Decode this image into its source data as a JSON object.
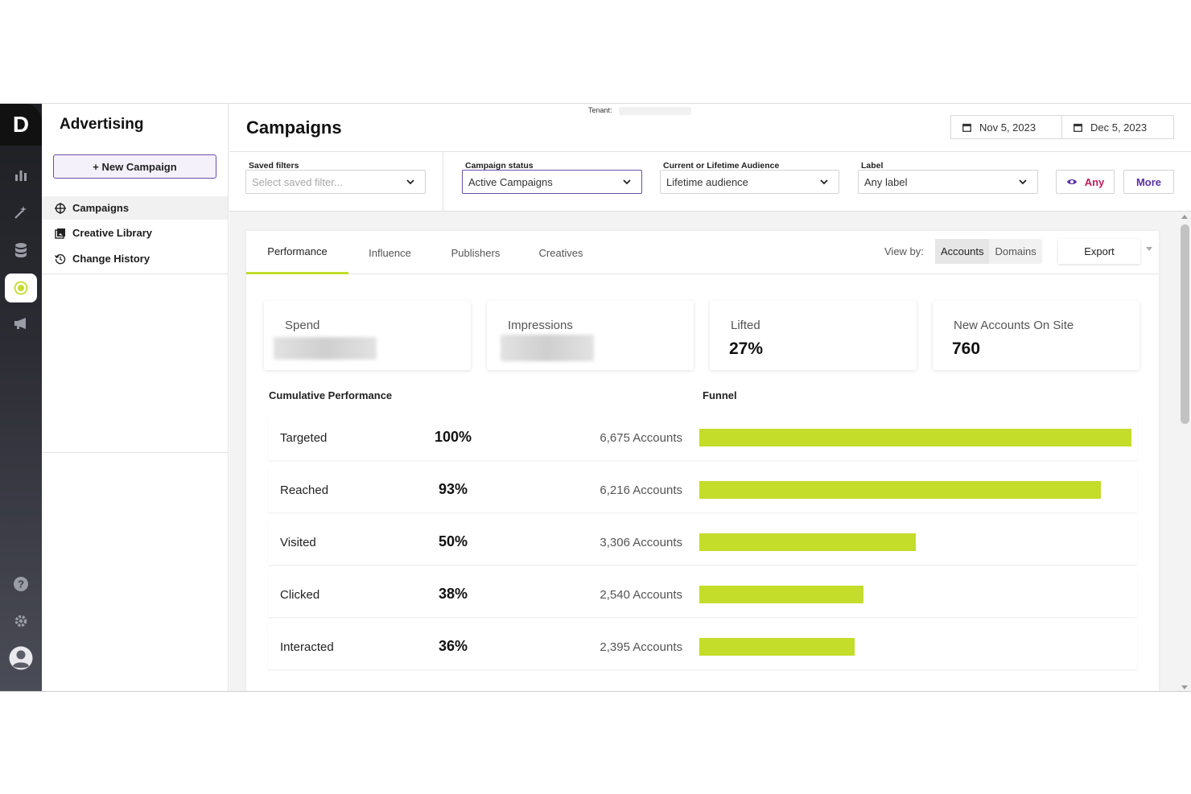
{
  "rail": {
    "logo_letter": "D",
    "icons": [
      "bar-chart-icon",
      "magic-wand-icon",
      "database-icon",
      "target-icon",
      "megaphone-icon",
      "help-icon",
      "gear-icon",
      "user-avatar-icon"
    ],
    "active_color": "#c4dc2a"
  },
  "sidebar": {
    "title": "Advertising",
    "new_campaign_label": "+ New Campaign",
    "items": [
      {
        "label": "Campaigns",
        "icon": "crosshair-icon",
        "selected": true
      },
      {
        "label": "Creative Library",
        "icon": "image-icon",
        "selected": false
      },
      {
        "label": "Change History",
        "icon": "history-icon",
        "selected": false
      }
    ]
  },
  "header": {
    "title": "Campaigns",
    "tenant_label": "Tenant:",
    "start_date": "Nov 5, 2023",
    "end_date": "Dec 5, 2023"
  },
  "filters": {
    "saved": {
      "label": "Saved filters",
      "placeholder": "Select saved filter..."
    },
    "status": {
      "label": "Campaign status",
      "value": "Active Campaigns"
    },
    "audience": {
      "label": "Current or Lifetime Audience",
      "value": "Lifetime audience"
    },
    "label": {
      "label": "Label",
      "value": "Any label"
    },
    "any_label": "Any",
    "more_label": "More"
  },
  "tabs": [
    {
      "label": "Performance",
      "active": true
    },
    {
      "label": "Influence",
      "active": false
    },
    {
      "label": "Publishers",
      "active": false
    },
    {
      "label": "Creatives",
      "active": false
    }
  ],
  "view_by": {
    "label": "View by:",
    "options": [
      "Accounts",
      "Domains"
    ],
    "selected": "Accounts"
  },
  "export_label": "Export",
  "kpis": [
    {
      "label": "Spend",
      "value": null
    },
    {
      "label": "Impressions",
      "value": null
    },
    {
      "label": "Lifted",
      "value": "27%"
    },
    {
      "label": "New Accounts On Site",
      "value": "760"
    }
  ],
  "sections": {
    "cumulative": "Cumulative Performance",
    "funnel": "Funnel"
  },
  "funnel": [
    {
      "stage": "Targeted",
      "pct": "100%",
      "accounts": "6,675 Accounts",
      "fraction": 1.0
    },
    {
      "stage": "Reached",
      "pct": "93%",
      "accounts": "6,216 Accounts",
      "fraction": 0.93
    },
    {
      "stage": "Visited",
      "pct": "50%",
      "accounts": "3,306 Accounts",
      "fraction": 0.5
    },
    {
      "stage": "Clicked",
      "pct": "38%",
      "accounts": "2,540 Accounts",
      "fraction": 0.38
    },
    {
      "stage": "Interacted",
      "pct": "36%",
      "accounts": "2,395 Accounts",
      "fraction": 0.36
    }
  ],
  "accent_color": "#c4dc2a",
  "brand_purple": "#5b2fa8"
}
